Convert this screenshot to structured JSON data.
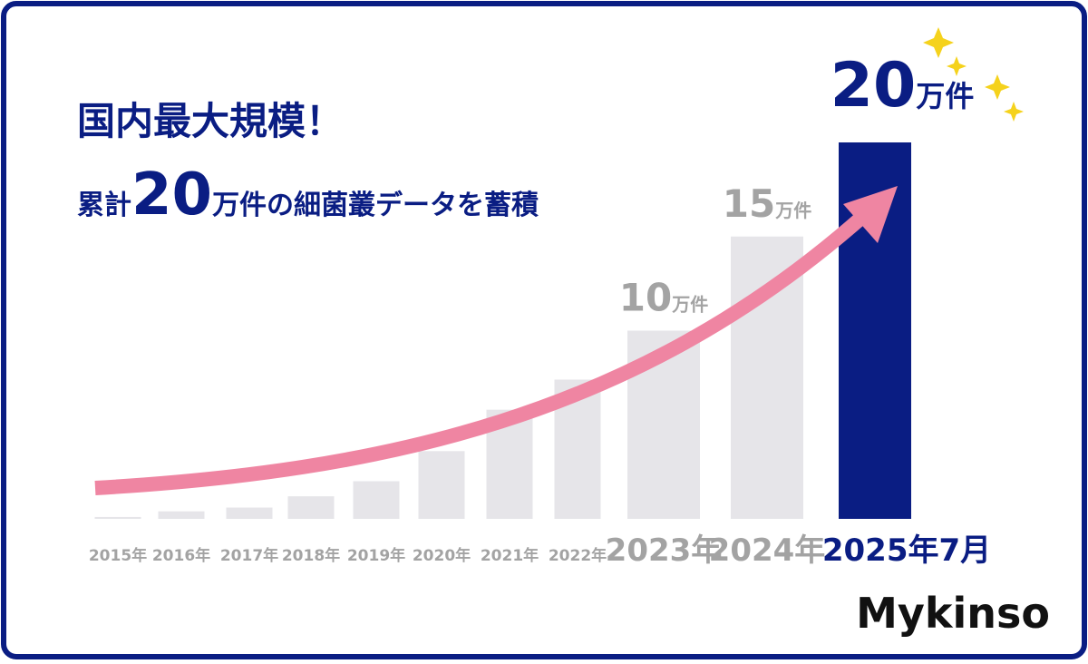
{
  "title": "国内最大規模！",
  "subtitle": {
    "prefix": "累計",
    "number": "20",
    "suffix": "万件の細菌叢データを蓄積"
  },
  "logo": "Mykinso",
  "chart_data": {
    "type": "bar",
    "categories": [
      "2015年",
      "2016年",
      "2017年",
      "2018年",
      "2019年",
      "2020年",
      "2021年",
      "2022年",
      "2023年",
      "2024年",
      "2025年7月"
    ],
    "values": [
      0.1,
      0.4,
      0.6,
      1.2,
      2,
      3.6,
      5.8,
      7.4,
      10,
      15,
      20
    ],
    "value_unit": "万件",
    "show_value": [
      false,
      false,
      false,
      false,
      false,
      false,
      false,
      false,
      true,
      true,
      true
    ],
    "colors": [
      "#e6e5e9",
      "#e6e5e9",
      "#e6e5e9",
      "#e6e5e9",
      "#e6e5e9",
      "#e6e5e9",
      "#e6e5e9",
      "#e6e5e9",
      "#e6e5e9",
      "#e6e5e9",
      "#0a1d83"
    ],
    "ylim": [
      0,
      20
    ]
  }
}
